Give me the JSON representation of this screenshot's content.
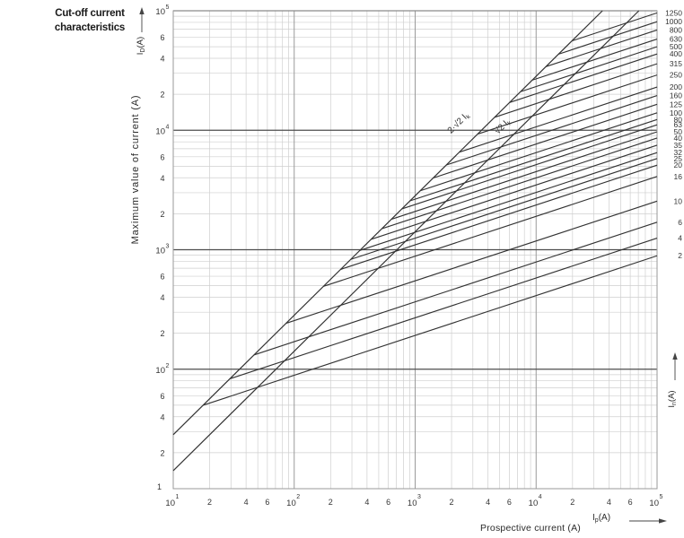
{
  "title": {
    "line1": "Cut-off current",
    "line2": "characteristics"
  },
  "symbols": {
    "id": {
      "base": "I",
      "sub": "D",
      "unit": "(A)"
    },
    "ip": {
      "base": "I",
      "sub": "p",
      "unit": "(A)"
    },
    "in": {
      "base": "I",
      "sub": "n",
      "unit": "(A)"
    }
  },
  "colors": {
    "curve": "#333333",
    "grid_minor": "#cfcfcf",
    "grid_major_vertical": "#9a9a9a",
    "grid_major_horizontal": "#4d4d4d",
    "frame": "#9a9a9a",
    "text": "#333333",
    "arrow": "#444444"
  },
  "chart_data": {
    "type": "line",
    "title": "Cut-off current characteristics",
    "xlabel": "Prospective current (A)",
    "ylabel": "Maximum value of current (A)",
    "xscale": "log",
    "yscale": "log",
    "xlim": [
      10,
      100000
    ],
    "ylim": [
      10,
      100000
    ],
    "grid": true,
    "x_ticks": {
      "decade_exponents": [
        1,
        2,
        3,
        4,
        5
      ],
      "minor_labels": [
        2,
        4,
        6
      ]
    },
    "y_ticks": {
      "decade_exponents": [
        5,
        4,
        3,
        2
      ],
      "minor_labels": [
        6,
        4,
        2
      ],
      "bottom_label": "1"
    },
    "legend_position": "right-edge",
    "right_axis_title_sub": "n",
    "reference_lines": [
      {
        "text": "2·√2 I",
        "sub": "k",
        "factor": 2.8284
      },
      {
        "text": "√2 I",
        "sub": "k",
        "factor": 1.4142
      }
    ],
    "curve_model": "I_D follows 2√2·I_p up to branch point, then slope 1/3 in log-log",
    "loglog_slope_after_branch": 0.3333,
    "series": [
      {
        "name": "1250",
        "rating_A": 1250,
        "cutoff_A_at_100kA": 96000
      },
      {
        "name": "1000",
        "rating_A": 1000,
        "cutoff_A_at_100kA": 81000
      },
      {
        "name": "800",
        "rating_A": 800,
        "cutoff_A_at_100kA": 69000
      },
      {
        "name": "630",
        "rating_A": 630,
        "cutoff_A_at_100kA": 58000
      },
      {
        "name": "500",
        "rating_A": 500,
        "cutoff_A_at_100kA": 50000
      },
      {
        "name": "400",
        "rating_A": 400,
        "cutoff_A_at_100kA": 43500
      },
      {
        "name": "315",
        "rating_A": 315,
        "cutoff_A_at_100kA": 36000
      },
      {
        "name": "250",
        "rating_A": 250,
        "cutoff_A_at_100kA": 29000
      },
      {
        "name": "200",
        "rating_A": 200,
        "cutoff_A_at_100kA": 23000
      },
      {
        "name": "160",
        "rating_A": 160,
        "cutoff_A_at_100kA": 19500
      },
      {
        "name": "125",
        "rating_A": 125,
        "cutoff_A_at_100kA": 16500
      },
      {
        "name": "100",
        "rating_A": 100,
        "cutoff_A_at_100kA": 14000
      },
      {
        "name": "80",
        "rating_A": 80,
        "cutoff_A_at_100kA": 12300
      },
      {
        "name": "63",
        "rating_A": 63,
        "cutoff_A_at_100kA": 11100
      },
      {
        "name": "50",
        "rating_A": 50,
        "cutoff_A_at_100kA": 9700
      },
      {
        "name": "40",
        "rating_A": 40,
        "cutoff_A_at_100kA": 8600
      },
      {
        "name": "35",
        "rating_A": 35,
        "cutoff_A_at_100kA": 7500
      },
      {
        "name": "32",
        "rating_A": 32,
        "cutoff_A_at_100kA": 6500
      },
      {
        "name": "25",
        "rating_A": 25,
        "cutoff_A_at_100kA": 5800
      },
      {
        "name": "20",
        "rating_A": 20,
        "cutoff_A_at_100kA": 5100
      },
      {
        "name": "16",
        "rating_A": 16,
        "cutoff_A_at_100kA": 4100
      },
      {
        "name": "10",
        "rating_A": 10,
        "cutoff_A_at_100kA": 2550
      },
      {
        "name": "6",
        "rating_A": 6,
        "cutoff_A_at_100kA": 1700
      },
      {
        "name": "4",
        "rating_A": 4,
        "cutoff_A_at_100kA": 1250
      },
      {
        "name": "2",
        "rating_A": 2,
        "cutoff_A_at_100kA": 890
      }
    ]
  }
}
